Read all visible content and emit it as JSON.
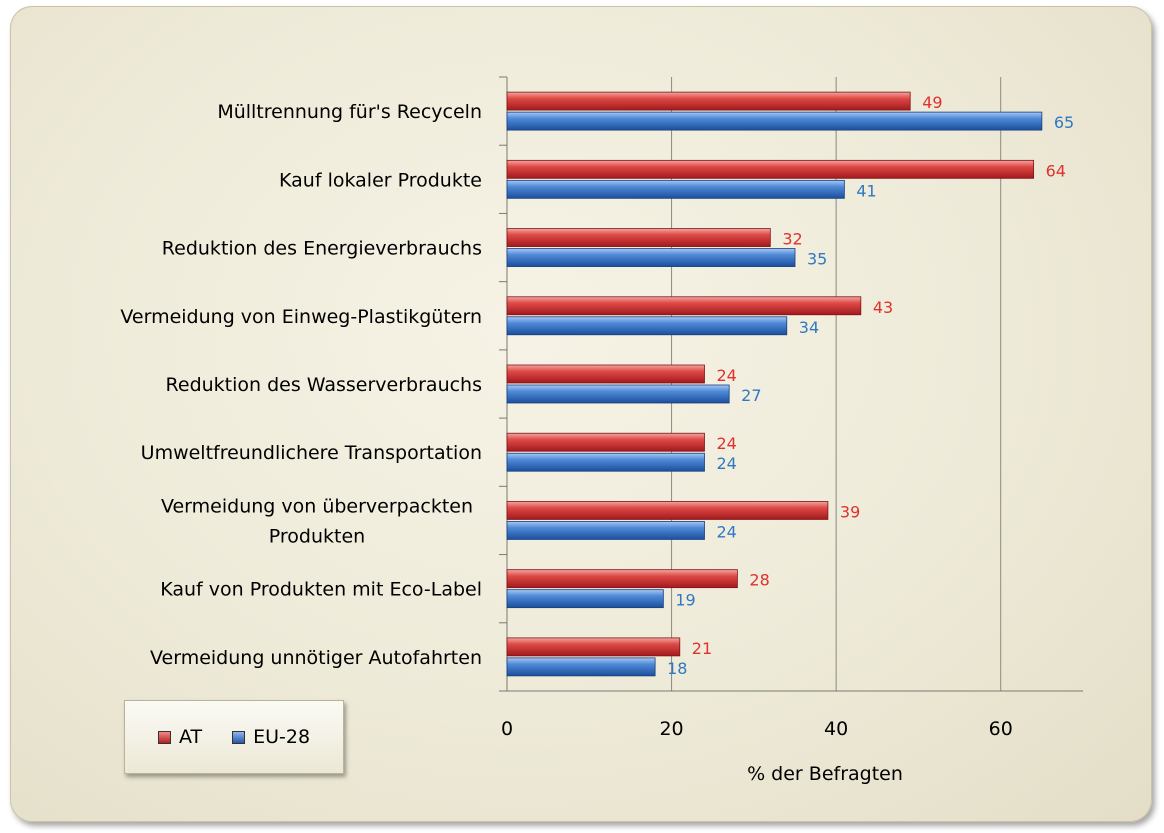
{
  "chart_data": {
    "type": "bar",
    "orientation": "horizontal",
    "categories": [
      "Mülltrennung für's Recyceln",
      "Kauf lokaler Produkte",
      "Reduktion des Energieverbrauchs",
      "Vermeidung von Einweg-Plastikgütern",
      "Reduktion des Wasserverbrauchs",
      "Umweltfreundlichere Transportation",
      "Vermeidung von überverpackten Produkten",
      "Kauf von Produkten mit Eco-Label",
      "Vermeidung unnötiger Autofahrten"
    ],
    "category_lines": [
      [
        "Mülltrennung für's Recyceln"
      ],
      [
        "Kauf lokaler Produkte"
      ],
      [
        "Reduktion des Energieverbrauchs"
      ],
      [
        "Vermeidung von Einweg-Plastikgütern"
      ],
      [
        "Reduktion des Wasserverbrauchs"
      ],
      [
        "Umweltfreundlichere Transportation"
      ],
      [
        "Vermeidung von überverpackten",
        "Produkten"
      ],
      [
        "Kauf von Produkten mit Eco-Label"
      ],
      [
        "Vermeidung unnötiger Autofahrten"
      ]
    ],
    "series": [
      {
        "name": "AT",
        "color": "#d9363b",
        "label_color": "#e0312e",
        "values": [
          49,
          64,
          32,
          43,
          24,
          24,
          39,
          28,
          21
        ]
      },
      {
        "name": "EU-28",
        "color": "#3f7bd4",
        "label_color": "#2f79c2",
        "values": [
          65,
          41,
          35,
          34,
          27,
          24,
          24,
          19,
          18
        ]
      }
    ],
    "xlabel": "% der Befragten",
    "xlim": [
      0,
      70
    ],
    "xticks": [
      0,
      20,
      40,
      60
    ],
    "grid": true,
    "legend_position": "bottom-left"
  }
}
